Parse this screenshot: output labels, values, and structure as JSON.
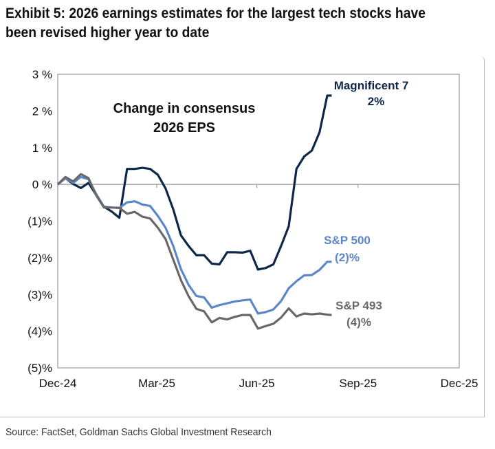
{
  "title": "Exhibit 5: 2026 earnings estimates for the largest tech stocks have been revised higher year to date",
  "source": "Source: FactSet, Goldman Sachs Global Investment Research",
  "chart_data": {
    "type": "line",
    "annotation": [
      "Change in consensus",
      "2026 EPS"
    ],
    "xlim": [
      "2024-12-31",
      "2025-12-31"
    ],
    "x_ticks": [
      {
        "date": "2024-12-31",
        "label": "Dec-24"
      },
      {
        "date": "2025-03-31",
        "label": "Mar-25"
      },
      {
        "date": "2025-06-30",
        "label": "Jun-25"
      },
      {
        "date": "2025-09-30",
        "label": "Sep-25"
      },
      {
        "date": "2025-12-31",
        "label": "Dec-25"
      }
    ],
    "ylim": [
      -5,
      3
    ],
    "y_ticks": [
      {
        "value": 3,
        "label": "3 %"
      },
      {
        "value": 2,
        "label": "2 %"
      },
      {
        "value": 1,
        "label": "1 %"
      },
      {
        "value": 0,
        "label": "0 %"
      },
      {
        "value": -1,
        "label": "(1)%"
      },
      {
        "value": -2,
        "label": "(2)%"
      },
      {
        "value": -3,
        "label": "(3)%"
      },
      {
        "value": -4,
        "label": "(4)%"
      },
      {
        "value": -5,
        "label": "(5)%"
      }
    ],
    "grid": false,
    "x": [
      "2024-12-31",
      "2025-01-07",
      "2025-01-14",
      "2025-01-21",
      "2025-01-28",
      "2025-02-04",
      "2025-02-11",
      "2025-02-18",
      "2025-02-25",
      "2025-03-04",
      "2025-03-11",
      "2025-03-18",
      "2025-03-25",
      "2025-04-01",
      "2025-04-08",
      "2025-04-15",
      "2025-04-22",
      "2025-04-29",
      "2025-05-06",
      "2025-05-13",
      "2025-05-20",
      "2025-05-27",
      "2025-06-03",
      "2025-06-10",
      "2025-06-17",
      "2025-06-24",
      "2025-07-01",
      "2025-07-08",
      "2025-07-15",
      "2025-07-22",
      "2025-07-29",
      "2025-08-05",
      "2025-08-12",
      "2025-08-19",
      "2025-08-26",
      "2025-09-02",
      "2025-09-06"
    ],
    "series": [
      {
        "name": "Magnificent 7",
        "end_label": "2%",
        "color": "#0e2749",
        "values": [
          0,
          0.17,
          0.01,
          -0.1,
          0.04,
          -0.29,
          -0.61,
          -0.74,
          -0.91,
          0.42,
          0.42,
          0.45,
          0.42,
          0.26,
          -0.11,
          -0.68,
          -1.39,
          -1.68,
          -1.93,
          -1.93,
          -2.16,
          -2.18,
          -1.85,
          -1.85,
          -1.86,
          -1.81,
          -2.32,
          -2.28,
          -2.18,
          -1.68,
          -1.14,
          0.42,
          0.76,
          0.92,
          1.42,
          2.42,
          2.42
        ]
      },
      {
        "name": "S&P 500",
        "end_label": "(2)%",
        "color": "#5b87c9",
        "values": [
          0,
          0.17,
          0.04,
          0.2,
          0.14,
          -0.27,
          -0.61,
          -0.63,
          -0.64,
          -0.49,
          -0.46,
          -0.55,
          -0.59,
          -0.86,
          -1.18,
          -1.68,
          -2.31,
          -2.74,
          -3.04,
          -3.08,
          -3.36,
          -3.29,
          -3.24,
          -3.19,
          -3.16,
          -3.14,
          -3.52,
          -3.48,
          -3.41,
          -3.18,
          -2.83,
          -2.64,
          -2.48,
          -2.47,
          -2.33,
          -2.11,
          -2.11
        ]
      },
      {
        "name": "S&P 493",
        "end_label": "(4)%",
        "color": "#686868",
        "values": [
          0,
          0.2,
          0.08,
          0.28,
          0.17,
          -0.3,
          -0.63,
          -0.63,
          -0.64,
          -0.8,
          -0.75,
          -0.88,
          -0.93,
          -1.18,
          -1.49,
          -2.05,
          -2.61,
          -3.05,
          -3.39,
          -3.46,
          -3.76,
          -3.64,
          -3.68,
          -3.61,
          -3.56,
          -3.56,
          -3.93,
          -3.86,
          -3.8,
          -3.63,
          -3.38,
          -3.6,
          -3.52,
          -3.54,
          -3.52,
          -3.55,
          -3.56
        ]
      }
    ]
  }
}
